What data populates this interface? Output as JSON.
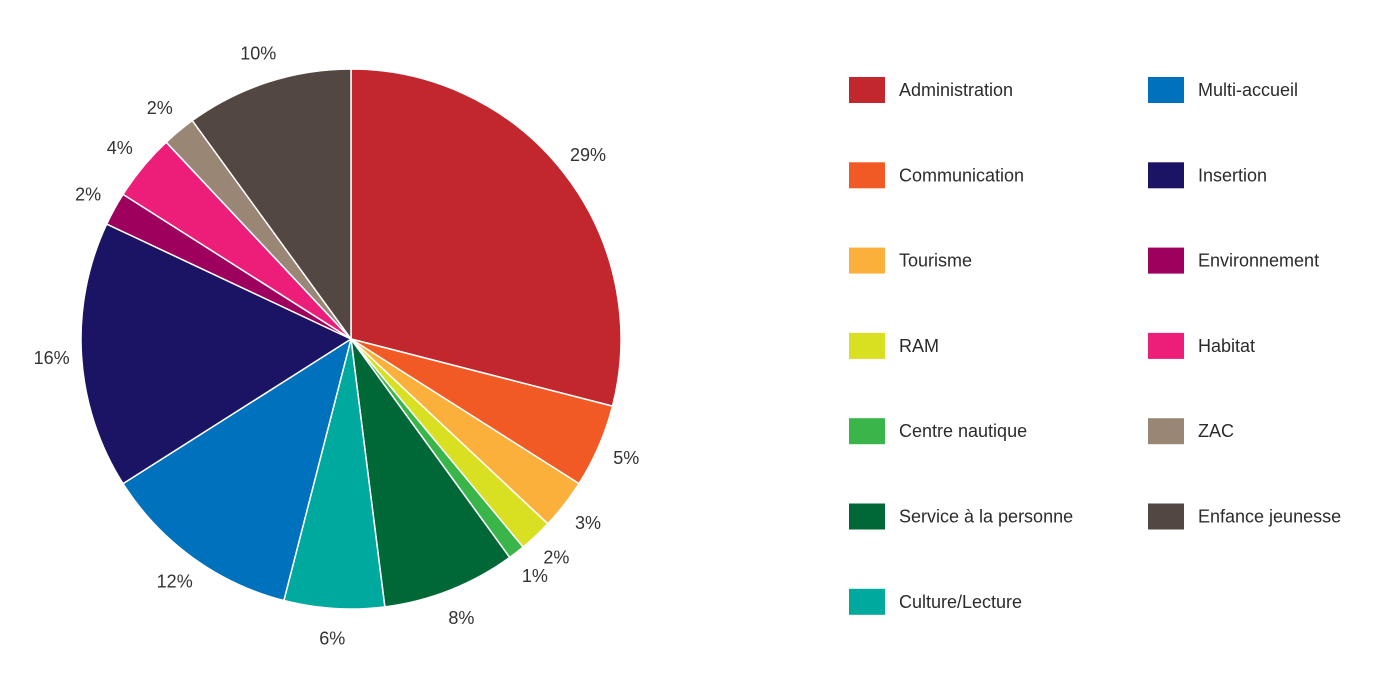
{
  "chart_data": {
    "type": "pie",
    "title": "",
    "legend_position": "right",
    "slices": [
      {
        "label": "Administration",
        "value": 29,
        "value_label": "29%",
        "color": "#C1272D"
      },
      {
        "label": "Communication",
        "value": 5,
        "value_label": "5%",
        "color": "#F15A24"
      },
      {
        "label": "Tourisme",
        "value": 3,
        "value_label": "3%",
        "color": "#FBB03B"
      },
      {
        "label": "RAM",
        "value": 2,
        "value_label": "2%",
        "color": "#D9E021"
      },
      {
        "label": "Centre nautique",
        "value": 1,
        "value_label": "1%",
        "color": "#39B54A"
      },
      {
        "label": "Service à la personne",
        "value": 8,
        "value_label": "8%",
        "color": "#006837"
      },
      {
        "label": "Culture/Lecture",
        "value": 6,
        "value_label": "6%",
        "color": "#00A99D"
      },
      {
        "label": "Multi-accueil",
        "value": 12,
        "value_label": "12%",
        "color": "#0071BC"
      },
      {
        "label": "Insertion",
        "value": 16,
        "value_label": "16%",
        "color": "#1B1464"
      },
      {
        "label": "Environnement",
        "value": 2,
        "value_label": "2%",
        "color": "#9E005D"
      },
      {
        "label": "Habitat",
        "value": 4,
        "value_label": "4%",
        "color": "#ED1E79"
      },
      {
        "label": "ZAC",
        "value": 2,
        "value_label": "2%",
        "color": "#998675"
      },
      {
        "label": "Enfance jeunesse",
        "value": 10,
        "value_label": "10%",
        "color": "#534741"
      }
    ]
  }
}
